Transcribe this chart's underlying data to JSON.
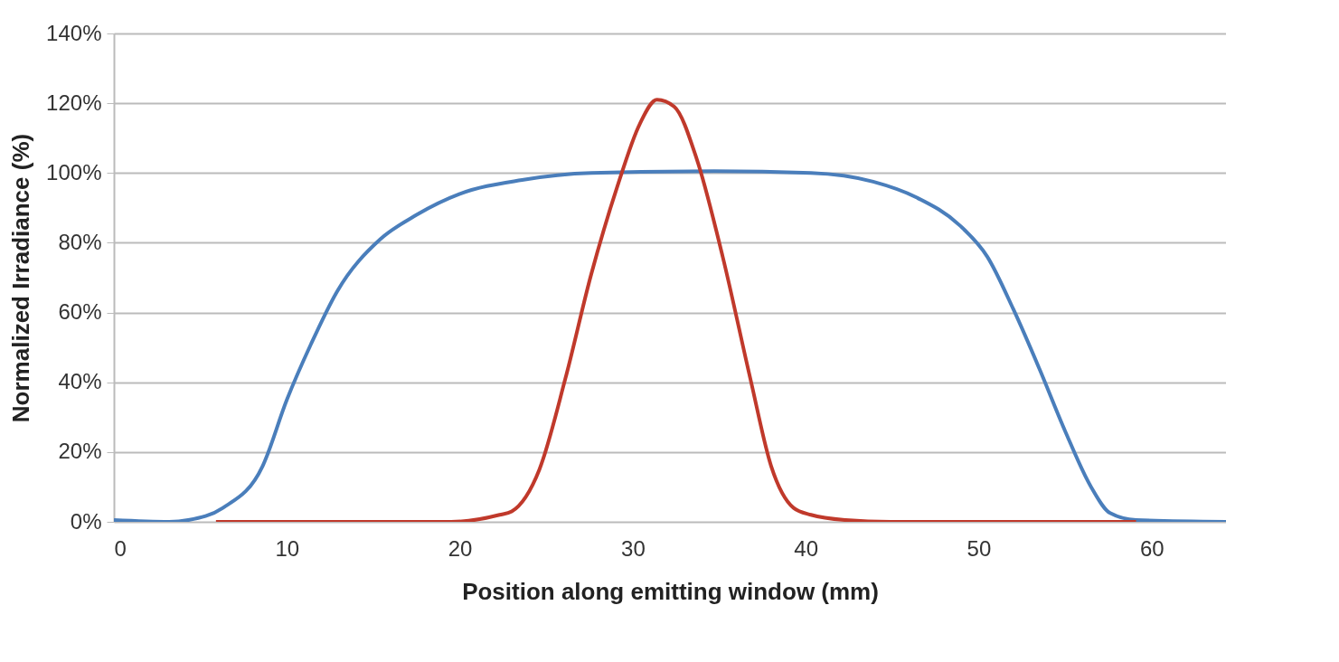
{
  "chart_data": {
    "type": "line",
    "xlabel": "Position along emitting window (mm)",
    "ylabel": "Normalized Irradiance (%)",
    "xlim": [
      0,
      64.3
    ],
    "xticks": [
      0,
      10,
      20,
      30,
      40,
      50,
      60
    ],
    "ylim": [
      0,
      140
    ],
    "yticks": [
      {
        "value": 0,
        "label": "0%"
      },
      {
        "value": 20,
        "label": "20%"
      },
      {
        "value": 40,
        "label": "40%"
      },
      {
        "value": 60,
        "label": "60%"
      },
      {
        "value": 80,
        "label": "80%"
      },
      {
        "value": 100,
        "label": "100%"
      },
      {
        "value": 120,
        "label": "120%"
      },
      {
        "value": 140,
        "label": "140%"
      }
    ],
    "grid": "y",
    "marker": "none",
    "line_style": "solid",
    "series": [
      {
        "color": "#4a7ebb",
        "x": [
          0,
          3.2,
          4.3,
          6.3,
          8.6,
          10,
          11.4,
          12.9,
          15.4,
          17.5,
          20,
          23.6,
          27.6,
          34.7,
          40.3,
          43.9,
          46.4,
          48.9,
          50.5,
          52,
          53.5,
          55,
          56.5,
          57.6,
          59.1,
          64.3
        ],
        "values": [
          0.5,
          0,
          0.5,
          4,
          16,
          35,
          51,
          66,
          81,
          88,
          94,
          98,
          100,
          100.5,
          100,
          97.5,
          93,
          85,
          76,
          61,
          44,
          26,
          10,
          2.5,
          0.5,
          0
        ]
      },
      {
        "color": "#c0392b",
        "x": [
          5.9,
          19.5,
          22.3,
          23,
          24.6,
          26.1,
          27.6,
          29.1,
          30.4,
          31.4,
          32.4,
          33.7,
          35.2,
          36.8,
          38,
          39.3,
          40.3,
          42.3,
          44.9,
          59.1
        ],
        "values": [
          0,
          0,
          2,
          3,
          15,
          41,
          71,
          96,
          114,
          121,
          119,
          104,
          76,
          41,
          16,
          4,
          2,
          0.5,
          0,
          0
        ]
      }
    ]
  }
}
